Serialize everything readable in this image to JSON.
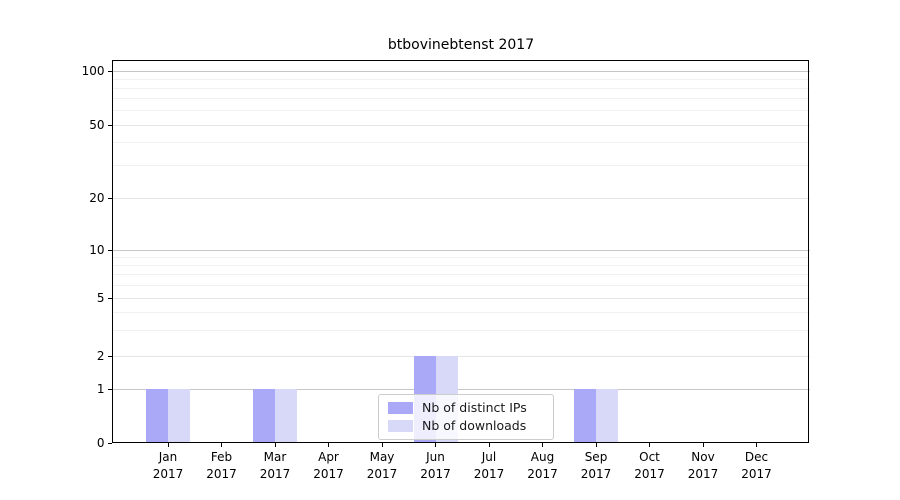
{
  "chart_data": {
    "type": "bar",
    "title": "btbovinebtenst 2017",
    "categories": [
      "Jan",
      "Feb",
      "Mar",
      "Apr",
      "May",
      "Jun",
      "Jul",
      "Aug",
      "Sep",
      "Oct",
      "Nov",
      "Dec"
    ],
    "year_label": "2017",
    "series": [
      {
        "name": "Nb of distinct IPs",
        "color": "#a9a9f7",
        "values": [
          1,
          0,
          1,
          0,
          0,
          2,
          0,
          0,
          1,
          0,
          0,
          0
        ]
      },
      {
        "name": "Nb of downloads",
        "color": "#d8d8f9",
        "values": [
          1,
          0,
          1,
          0,
          0,
          2,
          0,
          0,
          1,
          0,
          0,
          0
        ]
      }
    ],
    "yticks": [
      0,
      1,
      2,
      5,
      10,
      20,
      50,
      100
    ],
    "ylim": [
      0,
      115
    ],
    "yscale": "symlog",
    "grid": "horizontal major + log minor gridlines",
    "legend_position": "lower center",
    "colors": {
      "major_gridline": "#c6c6c6",
      "labeled_minor_gridline": "#e6e6e6",
      "minor_gridline": "#f1f1f1",
      "axis_spine": "#000000"
    }
  }
}
